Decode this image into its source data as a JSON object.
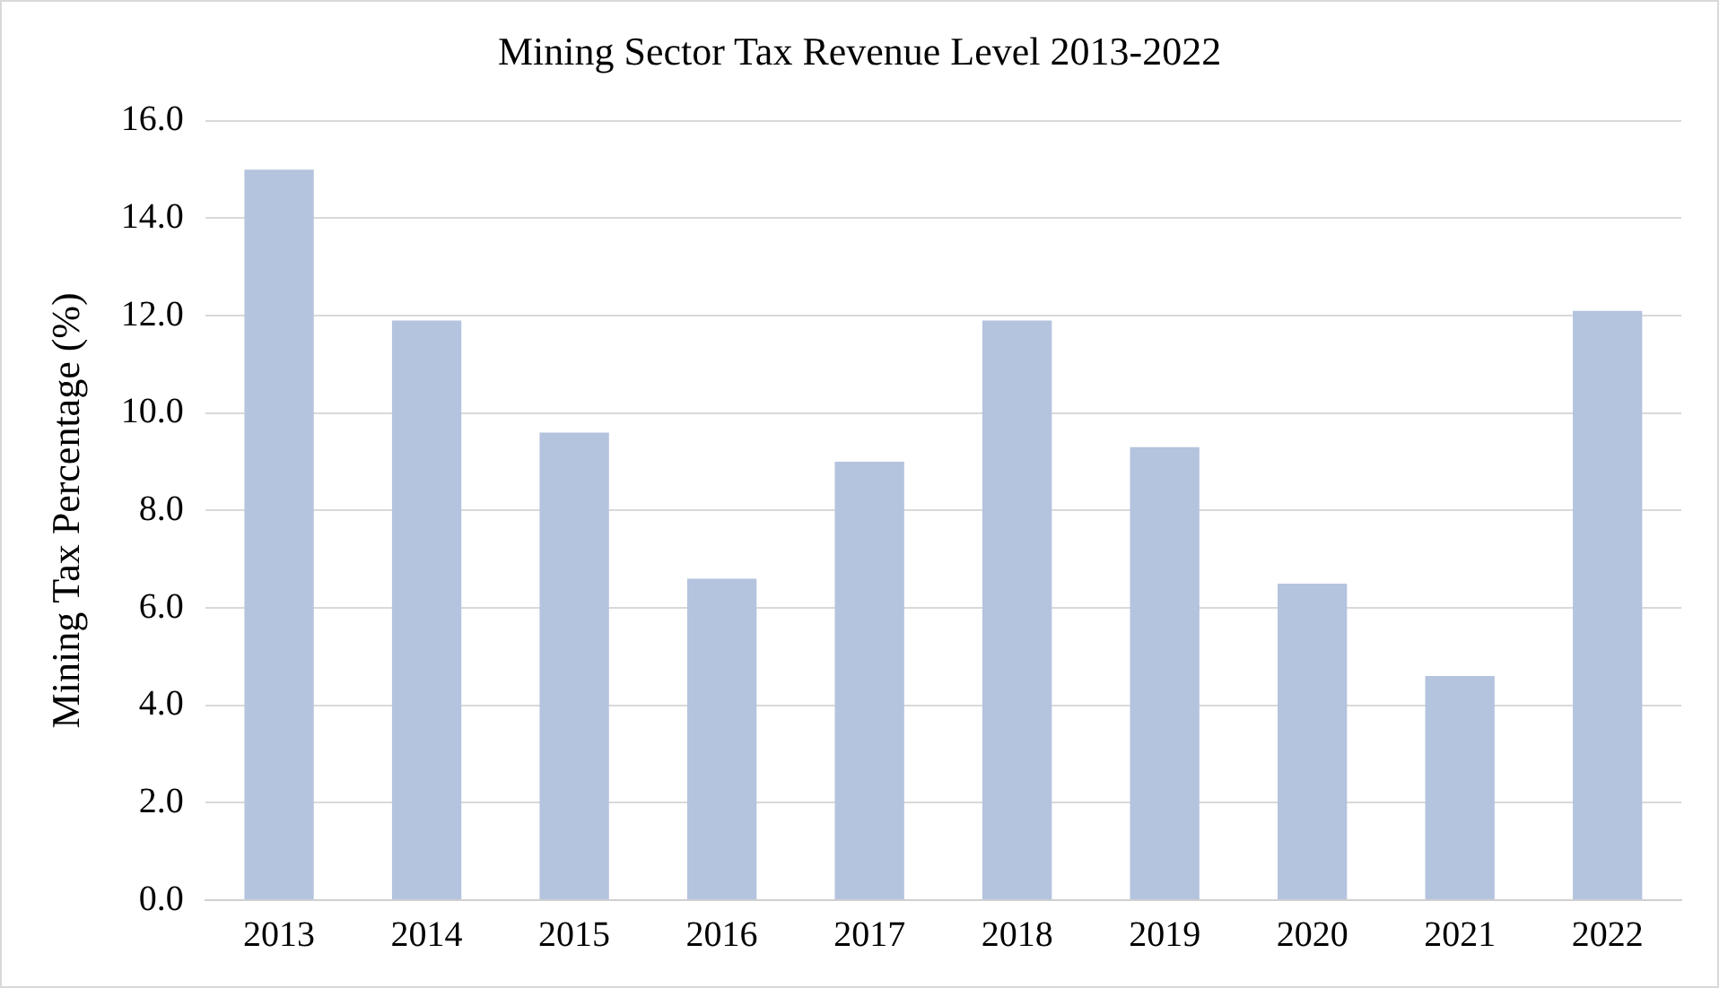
{
  "chart_data": {
    "type": "bar",
    "title": "Mining Sector Tax Revenue Level 2013-2022",
    "ylabel": "Mining Tax Percentage (%)",
    "categories": [
      "2013",
      "2014",
      "2015",
      "2016",
      "2017",
      "2018",
      "2019",
      "2020",
      "2021",
      "2022"
    ],
    "values": [
      15.0,
      11.9,
      9.6,
      6.6,
      9.0,
      11.9,
      9.3,
      6.5,
      4.6,
      12.1
    ],
    "color": "#b4c3de",
    "ylim": [
      0,
      16
    ],
    "yticks": [
      {
        "value": 0,
        "label": "0.0"
      },
      {
        "value": 2,
        "label": "2.0"
      },
      {
        "value": 4,
        "label": "4.0"
      },
      {
        "value": 6,
        "label": "6.0"
      },
      {
        "value": 8,
        "label": "8.0"
      },
      {
        "value": 10,
        "label": "10.0"
      },
      {
        "value": 12,
        "label": "12.0"
      },
      {
        "value": 14,
        "label": "14.0"
      },
      {
        "value": 16,
        "label": "16.0"
      }
    ],
    "grid": "y",
    "legend": false
  }
}
